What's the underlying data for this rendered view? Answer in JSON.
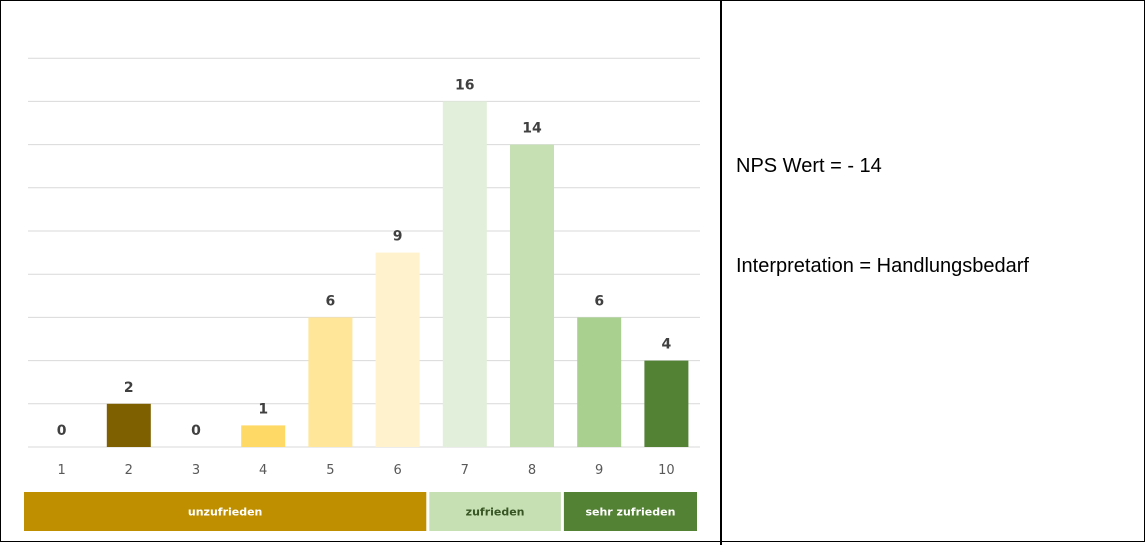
{
  "chart_data": {
    "type": "bar",
    "categories": [
      "1",
      "2",
      "3",
      "4",
      "5",
      "6",
      "7",
      "8",
      "9",
      "10"
    ],
    "values": [
      0,
      2,
      0,
      1,
      6,
      9,
      16,
      14,
      6,
      4
    ],
    "bar_colors": [
      "#7f6000",
      "#7f6000",
      "#7f6000",
      "#ffd966",
      "#ffe699",
      "#fff2cc",
      "#e2efda",
      "#c6e0b4",
      "#a9d08e",
      "#548235"
    ],
    "ylim": [
      0,
      18
    ],
    "grid": true,
    "title": "",
    "xlabel": "",
    "ylabel": ""
  },
  "segments": [
    {
      "label": "unzufrieden",
      "color": "#bf8f00",
      "text_color": "#ffffff"
    },
    {
      "label": "zufrieden",
      "color": "#c6e0b4",
      "text_color": "#375623"
    },
    {
      "label": "sehr zufrieden",
      "color": "#548235",
      "text_color": "#ffffff"
    }
  ],
  "info": {
    "nps": "NPS Wert = - 14",
    "interpretation": "Interpretation = Handlungsbedarf"
  }
}
